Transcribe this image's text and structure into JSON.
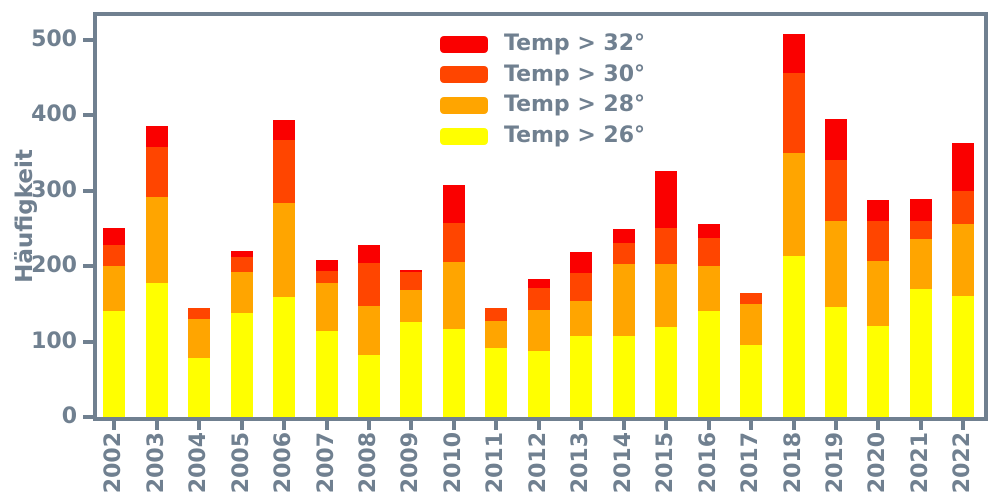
{
  "chart_data": {
    "type": "bar",
    "stacked": true,
    "title": "",
    "xlabel": "",
    "ylabel": "Häufigkeit",
    "grid": false,
    "legend_position": "upper-center-inside",
    "background": "#ffffff",
    "axis_color": "#708090",
    "yticks": [
      0,
      100,
      200,
      300,
      400,
      500
    ],
    "ylim": [
      0,
      530
    ],
    "categories": [
      "2002",
      "2003",
      "2004",
      "2005",
      "2006",
      "2007",
      "2008",
      "2009",
      "2010",
      "2011",
      "2012",
      "2013",
      "2014",
      "2015",
      "2016",
      "2017",
      "2018",
      "2019",
      "2020",
      "2021",
      "2022"
    ],
    "series": [
      {
        "name": "Temp > 32°",
        "color": "#fa0000",
        "values": [
          22,
          28,
          0,
          8,
          27,
          15,
          24,
          3,
          50,
          0,
          12,
          27,
          19,
          76,
          19,
          0,
          52,
          55,
          28,
          30,
          64
        ]
      },
      {
        "name": "Temp > 30°",
        "color": "#ff4500",
        "values": [
          28,
          65,
          14,
          20,
          83,
          16,
          57,
          24,
          52,
          18,
          29,
          37,
          28,
          48,
          37,
          14,
          105,
          80,
          53,
          23,
          44
        ]
      },
      {
        "name": "Temp > 28°",
        "color": "#ffa500",
        "values": [
          60,
          115,
          52,
          54,
          125,
          63,
          65,
          42,
          89,
          35,
          55,
          47,
          95,
          83,
          59,
          55,
          137,
          114,
          86,
          66,
          95
        ]
      },
      {
        "name": "Temp > 26°",
        "color": "#ffff00",
        "values": [
          140,
          177,
          78,
          138,
          159,
          114,
          82,
          126,
          116,
          92,
          87,
          107,
          107,
          119,
          141,
          95,
          213,
          146,
          120,
          170,
          160
        ]
      }
    ],
    "stack_order_bottom_to_top": [
      "Temp > 26°",
      "Temp > 28°",
      "Temp > 30°",
      "Temp > 32°"
    ],
    "totals": [
      250,
      385,
      144,
      220,
      394,
      208,
      228,
      195,
      307,
      145,
      183,
      218,
      249,
      326,
      256,
      164,
      507,
      395,
      287,
      289,
      363
    ]
  }
}
